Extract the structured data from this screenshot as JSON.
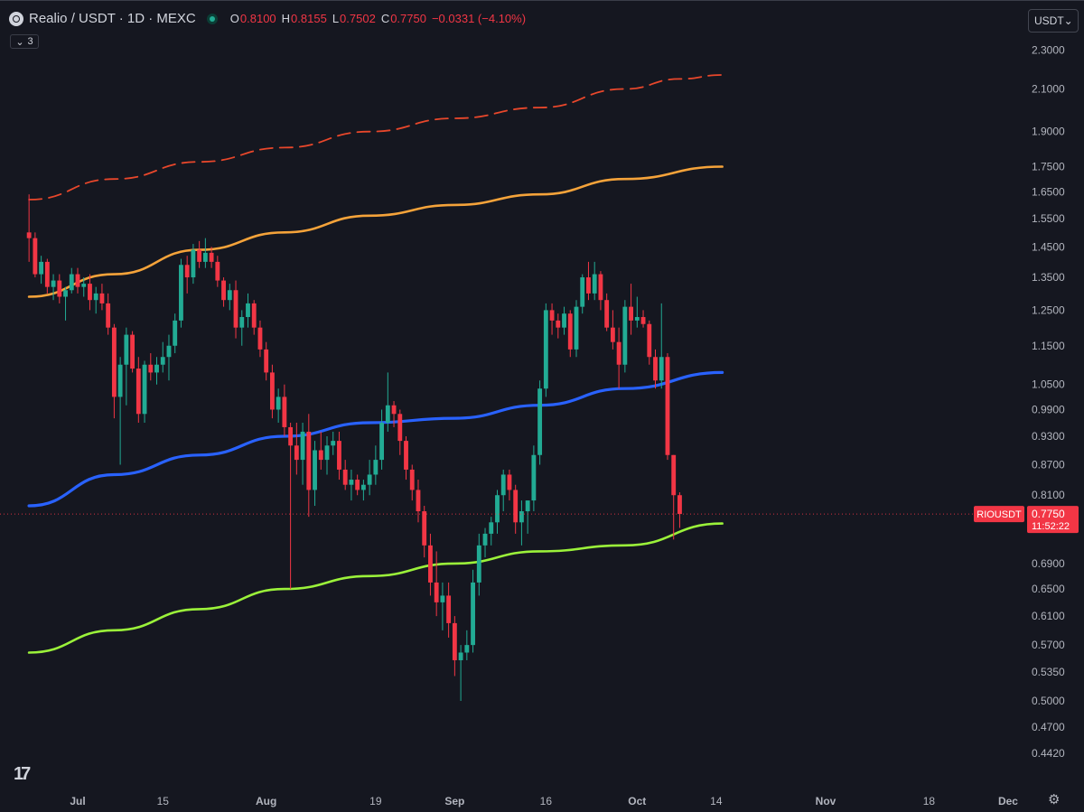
{
  "header": {
    "symbol_title": "Realio / USDT · 1D · MEXC",
    "ohlc": [
      {
        "key": "O",
        "value": "0.8100"
      },
      {
        "key": "H",
        "value": "0.8155"
      },
      {
        "key": "L",
        "value": "0.7502"
      },
      {
        "key": "C",
        "value": "0.7750"
      }
    ],
    "change": "−0.0331 (−4.10%)",
    "indicator_count": "3"
  },
  "currency_select": "USDT",
  "colors": {
    "background": "#151720",
    "up_candle": "#22ab94",
    "down_candle": "#f23645",
    "dashed_band": "#e8472b",
    "orange_band": "#f5a33a",
    "blue_ma": "#2962ff",
    "green_ma": "#9bf23a",
    "axis_text": "#b2b5be"
  },
  "price_label": {
    "symbol": "RIOUSDT",
    "price": "0.7750",
    "countdown": "11:52:22"
  },
  "chart_data": {
    "type": "candlestick",
    "y_scale": "log",
    "ylim": [
      0.42,
      2.41
    ],
    "y_ticks": [
      "2.3000",
      "2.1000",
      "1.9000",
      "1.7500",
      "1.6500",
      "1.5500",
      "1.4500",
      "1.3500",
      "1.2500",
      "1.1500",
      "1.0500",
      "0.9900",
      "0.9300",
      "0.8700",
      "0.8100",
      "0.6900",
      "0.6500",
      "0.6100",
      "0.5700",
      "0.5350",
      "0.5000",
      "0.4700",
      "0.4420"
    ],
    "x_ticks": [
      {
        "date": "2024-07-01",
        "label": "Jul"
      },
      {
        "date": "2024-07-15",
        "label": "15"
      },
      {
        "date": "2024-08-01",
        "label": "Aug"
      },
      {
        "date": "2024-08-19",
        "label": "19"
      },
      {
        "date": "2024-09-01",
        "label": "Sep"
      },
      {
        "date": "2024-09-16",
        "label": "16"
      },
      {
        "date": "2024-10-01",
        "label": "Oct"
      },
      {
        "date": "2024-10-14",
        "label": "14"
      },
      {
        "date": "2024-11-01",
        "label": "Nov"
      },
      {
        "date": "2024-11-18",
        "label": "18"
      },
      {
        "date": "2024-12-01",
        "label": "Dec"
      }
    ],
    "last_price": 0.775,
    "start_date": "2024-06-23",
    "candles": [
      [
        1.5,
        1.64,
        1.4,
        1.48
      ],
      [
        1.48,
        1.5,
        1.35,
        1.36
      ],
      [
        1.36,
        1.42,
        1.33,
        1.4
      ],
      [
        1.4,
        1.41,
        1.3,
        1.32
      ],
      [
        1.32,
        1.36,
        1.28,
        1.34
      ],
      [
        1.34,
        1.36,
        1.27,
        1.29
      ],
      [
        1.29,
        1.32,
        1.22,
        1.31
      ],
      [
        1.31,
        1.38,
        1.3,
        1.36
      ],
      [
        1.36,
        1.38,
        1.3,
        1.32
      ],
      [
        1.32,
        1.35,
        1.29,
        1.33
      ],
      [
        1.33,
        1.36,
        1.25,
        1.28
      ],
      [
        1.28,
        1.32,
        1.24,
        1.3
      ],
      [
        1.3,
        1.33,
        1.25,
        1.27
      ],
      [
        1.27,
        1.3,
        1.18,
        1.2
      ],
      [
        1.2,
        1.21,
        0.97,
        1.02
      ],
      [
        1.02,
        1.12,
        0.87,
        1.1
      ],
      [
        1.1,
        1.2,
        1.0,
        1.18
      ],
      [
        1.18,
        1.19,
        1.08,
        1.09
      ],
      [
        1.09,
        1.12,
        0.96,
        0.98
      ],
      [
        0.98,
        1.11,
        0.96,
        1.1
      ],
      [
        1.1,
        1.13,
        1.06,
        1.08
      ],
      [
        1.08,
        1.12,
        1.05,
        1.1
      ],
      [
        1.1,
        1.16,
        1.08,
        1.12
      ],
      [
        1.12,
        1.18,
        1.06,
        1.15
      ],
      [
        1.15,
        1.24,
        1.13,
        1.22
      ],
      [
        1.22,
        1.41,
        1.2,
        1.39
      ],
      [
        1.39,
        1.42,
        1.3,
        1.35
      ],
      [
        1.35,
        1.46,
        1.33,
        1.44
      ],
      [
        1.44,
        1.47,
        1.38,
        1.4
      ],
      [
        1.4,
        1.48,
        1.38,
        1.43
      ],
      [
        1.43,
        1.45,
        1.38,
        1.4
      ],
      [
        1.4,
        1.42,
        1.32,
        1.34
      ],
      [
        1.34,
        1.35,
        1.26,
        1.28
      ],
      [
        1.28,
        1.33,
        1.25,
        1.31
      ],
      [
        1.31,
        1.34,
        1.17,
        1.2
      ],
      [
        1.2,
        1.25,
        1.15,
        1.23
      ],
      [
        1.23,
        1.3,
        1.2,
        1.27
      ],
      [
        1.27,
        1.28,
        1.18,
        1.2
      ],
      [
        1.2,
        1.22,
        1.12,
        1.14
      ],
      [
        1.14,
        1.16,
        1.06,
        1.08
      ],
      [
        1.08,
        1.1,
        0.97,
        0.99
      ],
      [
        0.99,
        1.04,
        0.96,
        1.02
      ],
      [
        1.02,
        1.05,
        0.93,
        0.95
      ],
      [
        0.95,
        0.96,
        0.65,
        0.91
      ],
      [
        0.91,
        0.96,
        0.85,
        0.88
      ],
      [
        0.88,
        0.96,
        0.83,
        0.94
      ],
      [
        0.94,
        0.98,
        0.77,
        0.82
      ],
      [
        0.82,
        0.92,
        0.79,
        0.9
      ],
      [
        0.9,
        0.94,
        0.86,
        0.88
      ],
      [
        0.88,
        0.93,
        0.85,
        0.91
      ],
      [
        0.91,
        0.94,
        0.89,
        0.92
      ],
      [
        0.92,
        0.94,
        0.84,
        0.86
      ],
      [
        0.86,
        0.88,
        0.82,
        0.83
      ],
      [
        0.83,
        0.86,
        0.8,
        0.84
      ],
      [
        0.84,
        0.85,
        0.81,
        0.82
      ],
      [
        0.82,
        0.84,
        0.8,
        0.83
      ],
      [
        0.83,
        0.88,
        0.81,
        0.85
      ],
      [
        0.85,
        0.91,
        0.83,
        0.88
      ],
      [
        0.88,
        0.99,
        0.86,
        0.96
      ],
      [
        0.96,
        1.08,
        0.94,
        1.0
      ],
      [
        1.0,
        1.01,
        0.95,
        0.98
      ],
      [
        0.98,
        0.99,
        0.89,
        0.92
      ],
      [
        0.92,
        0.93,
        0.84,
        0.86
      ],
      [
        0.86,
        0.87,
        0.8,
        0.82
      ],
      [
        0.82,
        0.84,
        0.76,
        0.78
      ],
      [
        0.78,
        0.79,
        0.7,
        0.72
      ],
      [
        0.72,
        0.74,
        0.64,
        0.66
      ],
      [
        0.66,
        0.71,
        0.61,
        0.63
      ],
      [
        0.63,
        0.66,
        0.59,
        0.64
      ],
      [
        0.64,
        0.66,
        0.58,
        0.6
      ],
      [
        0.6,
        0.61,
        0.53,
        0.55
      ],
      [
        0.55,
        0.57,
        0.5,
        0.56
      ],
      [
        0.56,
        0.59,
        0.55,
        0.57
      ],
      [
        0.57,
        0.68,
        0.56,
        0.66
      ],
      [
        0.66,
        0.74,
        0.64,
        0.72
      ],
      [
        0.72,
        0.75,
        0.7,
        0.74
      ],
      [
        0.74,
        0.77,
        0.72,
        0.76
      ],
      [
        0.76,
        0.82,
        0.74,
        0.81
      ],
      [
        0.81,
        0.86,
        0.78,
        0.85
      ],
      [
        0.85,
        0.86,
        0.8,
        0.82
      ],
      [
        0.82,
        0.83,
        0.74,
        0.76
      ],
      [
        0.76,
        0.8,
        0.72,
        0.78
      ],
      [
        0.78,
        0.8,
        0.74,
        0.8
      ],
      [
        0.8,
        0.91,
        0.78,
        0.89
      ],
      [
        0.89,
        1.06,
        0.87,
        1.04
      ],
      [
        1.04,
        1.27,
        1.02,
        1.25
      ],
      [
        1.25,
        1.27,
        1.18,
        1.22
      ],
      [
        1.22,
        1.24,
        1.17,
        1.2
      ],
      [
        1.2,
        1.26,
        1.18,
        1.24
      ],
      [
        1.24,
        1.25,
        1.12,
        1.14
      ],
      [
        1.14,
        1.28,
        1.12,
        1.26
      ],
      [
        1.26,
        1.36,
        1.24,
        1.35
      ],
      [
        1.35,
        1.4,
        1.28,
        1.3
      ],
      [
        1.3,
        1.4,
        1.28,
        1.36
      ],
      [
        1.36,
        1.37,
        1.25,
        1.28
      ],
      [
        1.28,
        1.3,
        1.19,
        1.2
      ],
      [
        1.2,
        1.25,
        1.14,
        1.16
      ],
      [
        1.16,
        1.2,
        1.04,
        1.1
      ],
      [
        1.1,
        1.28,
        1.08,
        1.26
      ],
      [
        1.26,
        1.33,
        1.18,
        1.22
      ],
      [
        1.22,
        1.29,
        1.2,
        1.23
      ],
      [
        1.23,
        1.25,
        1.2,
        1.21
      ],
      [
        1.21,
        1.22,
        1.1,
        1.12
      ],
      [
        1.12,
        1.14,
        1.04,
        1.06
      ],
      [
        1.06,
        1.27,
        1.04,
        1.12
      ],
      [
        1.12,
        1.13,
        0.88,
        0.89
      ],
      [
        0.89,
        0.89,
        0.73,
        0.81
      ],
      [
        0.81,
        0.8155,
        0.7502,
        0.775
      ]
    ],
    "series": [
      {
        "points": [
          [
            "2024-06-23",
            1.62
          ],
          [
            "2024-07-07",
            1.7
          ],
          [
            "2024-07-21",
            1.77
          ],
          [
            "2024-08-04",
            1.83
          ],
          [
            "2024-08-18",
            1.9
          ],
          [
            "2024-09-01",
            1.96
          ],
          [
            "2024-09-15",
            2.01
          ],
          [
            "2024-09-29",
            2.1
          ],
          [
            "2024-10-08",
            2.15
          ],
          [
            "2024-10-15",
            2.17
          ]
        ]
      },
      {
        "points": [
          [
            "2024-06-23",
            1.29
          ],
          [
            "2024-07-07",
            1.36
          ],
          [
            "2024-07-21",
            1.44
          ],
          [
            "2024-08-04",
            1.5
          ],
          [
            "2024-08-18",
            1.56
          ],
          [
            "2024-09-01",
            1.6
          ],
          [
            "2024-09-15",
            1.64
          ],
          [
            "2024-09-29",
            1.7
          ],
          [
            "2024-10-15",
            1.75
          ]
        ]
      },
      {
        "points": [
          [
            "2024-06-23",
            0.79
          ],
          [
            "2024-07-07",
            0.85
          ],
          [
            "2024-07-21",
            0.89
          ],
          [
            "2024-08-04",
            0.93
          ],
          [
            "2024-08-18",
            0.96
          ],
          [
            "2024-09-01",
            0.97
          ],
          [
            "2024-09-15",
            1.0
          ],
          [
            "2024-09-29",
            1.04
          ],
          [
            "2024-10-15",
            1.08
          ]
        ]
      },
      {
        "points": [
          [
            "2024-06-23",
            0.56
          ],
          [
            "2024-07-07",
            0.59
          ],
          [
            "2024-07-21",
            0.62
          ],
          [
            "2024-08-04",
            0.65
          ],
          [
            "2024-08-18",
            0.67
          ],
          [
            "2024-09-01",
            0.69
          ],
          [
            "2024-09-15",
            0.71
          ],
          [
            "2024-09-29",
            0.72
          ],
          [
            "2024-10-15",
            0.758
          ]
        ]
      }
    ]
  }
}
